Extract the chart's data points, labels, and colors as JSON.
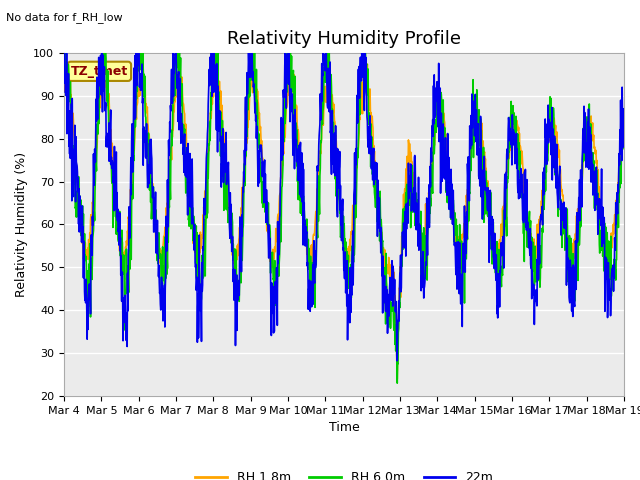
{
  "title": "Relativity Humidity Profile",
  "top_left_text": "No data for f_RH_low",
  "tz_label": "TZ_tmet",
  "xlabel": "Time",
  "ylabel": "Relativity Humidity (%)",
  "ylim": [
    20,
    100
  ],
  "yticks": [
    20,
    30,
    40,
    50,
    60,
    70,
    80,
    90,
    100
  ],
  "x_tick_labels": [
    "Mar 4",
    "Mar 5",
    "Mar 6",
    "Mar 7",
    "Mar 8",
    "Mar 9",
    "Mar 10",
    "Mar 11",
    "Mar 12",
    "Mar 13",
    "Mar 14",
    "Mar 15",
    "Mar 16",
    "Mar 17",
    "Mar 18",
    "Mar 19"
  ],
  "legend": [
    "RH 1.8m",
    "RH 6.0m",
    "22m"
  ],
  "colors": [
    "#FFA500",
    "#00CC00",
    "#0000EE"
  ],
  "line_width": 1.2,
  "plot_bg_color": "#EBEBEB",
  "title_fontsize": 13,
  "label_fontsize": 9,
  "tick_fontsize": 8,
  "annot_fontsize": 8,
  "tz_fontsize": 9,
  "legend_fontsize": 9
}
